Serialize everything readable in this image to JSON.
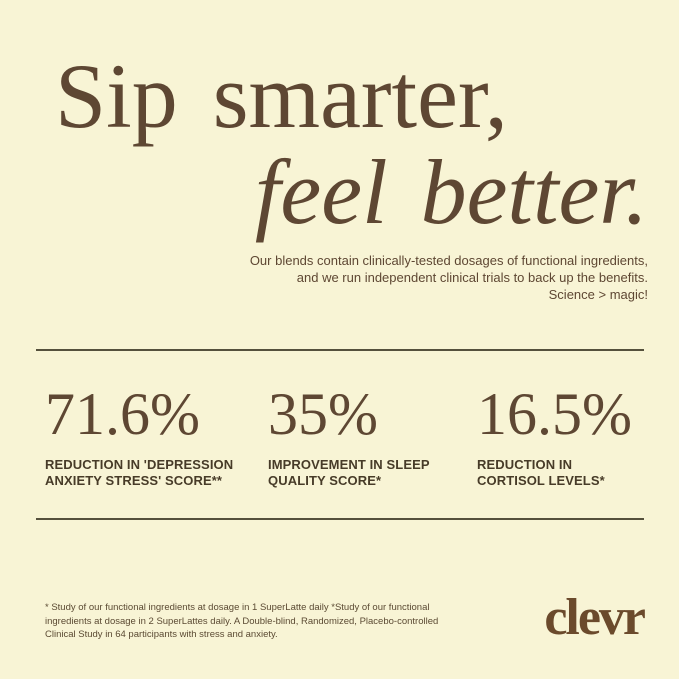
{
  "page": {
    "background_color": "#f8f4d5",
    "text_color": "#5e4733",
    "divider_color": "#55503c"
  },
  "hero": {
    "heading_line1": "Sip smarter,",
    "heading_line2": "feel better.",
    "subtitle_line1": "Our blends contain clinically-tested dosages of functional ingredients,",
    "subtitle_line2": "and we run independent clinical trials to back up the benefits.",
    "subtitle_line3": "Science > magic!"
  },
  "stats": [
    {
      "value": "71.6%",
      "label": "Reduction in 'Depression Anxiety Stress' Score**"
    },
    {
      "value": "35%",
      "label": "Improvement in Sleep Quality Score*"
    },
    {
      "value": "16.5%",
      "label": "Reduction in Cortisol Levels*"
    }
  ],
  "footer": {
    "disclaimer": "* Study of our functional ingredients at dosage in 1 SuperLatte daily *Study of our functional ingredients at dosage in 2 SuperLattes daily. A Double-blind, Randomized, Placebo-controlled Clinical Study in 64 participants with stress and anxiety.",
    "brand_logo": "clevr"
  }
}
